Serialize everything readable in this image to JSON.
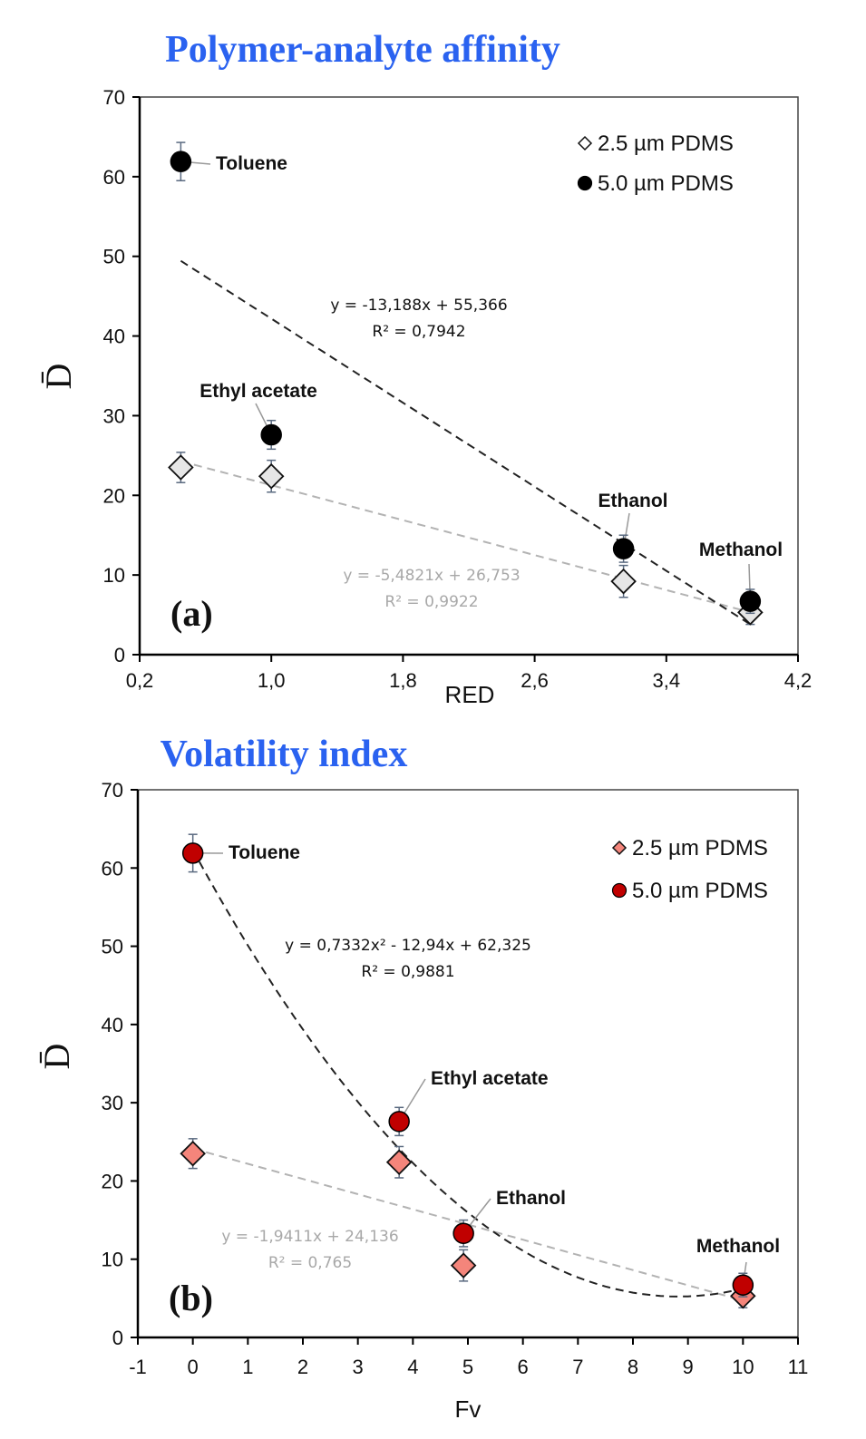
{
  "chart_data": [
    {
      "type": "scatter",
      "panel": "(a)",
      "title": "Polymer-analyte affinity",
      "xlabel": "RED",
      "ylabel": "D̄",
      "xlim": [
        0.2,
        4.2
      ],
      "ylim": [
        0,
        70
      ],
      "xticks": [
        0.2,
        1.0,
        1.8,
        2.6,
        3.4,
        4.2
      ],
      "xtick_labels": [
        "0,2",
        "1,0",
        "1,8",
        "2,6",
        "3,4",
        "4,2"
      ],
      "yticks": [
        0,
        10,
        20,
        30,
        40,
        50,
        60,
        70
      ],
      "ytick_labels": [
        "0",
        "10",
        "20",
        "30",
        "40",
        "50",
        "60",
        "70"
      ],
      "legend_position": "top-right",
      "grid": false,
      "categories": [
        "Toluene",
        "Ethyl acetate",
        "Ethanol",
        "Methanol"
      ],
      "x": [
        0.45,
        1.0,
        3.14,
        3.91
      ],
      "series": [
        {
          "name": "2.5 µm PDMS",
          "marker": "diamond",
          "color": "#e6e6e6",
          "values": [
            23.5,
            22.4,
            9.2,
            5.3
          ],
          "errors": [
            1.9,
            2.0,
            2.0,
            1.5
          ],
          "trendline": {
            "type": "linear",
            "equation": "y = -5,4821x + 26,753",
            "r2": "R² = 0,9922",
            "slope": -5.4821,
            "intercept": 26.753,
            "color": "#b3b3b3",
            "x_range": [
              0.45,
              3.91
            ]
          }
        },
        {
          "name": "5.0 µm PDMS",
          "marker": "circle",
          "color": "#000000",
          "values": [
            61.9,
            27.6,
            13.3,
            6.7
          ],
          "errors": [
            2.4,
            1.8,
            1.7,
            1.5
          ],
          "trendline": {
            "type": "linear",
            "equation": "y = -13,188x + 55,366",
            "r2": "R² = 0,7942",
            "slope": -13.188,
            "intercept": 55.366,
            "color": "#222222",
            "x_range": [
              0.45,
              3.91
            ]
          }
        }
      ],
      "annotations": [
        "Toluene",
        "Ethyl acetate",
        "Ethanol",
        "Methanol"
      ]
    },
    {
      "type": "scatter",
      "panel": "(b)",
      "title": "Volatility index",
      "xlabel": "Fv",
      "ylabel": "D̄",
      "xlim": [
        -1,
        11
      ],
      "ylim": [
        0,
        70
      ],
      "xticks": [
        -1,
        0,
        1,
        2,
        3,
        4,
        5,
        6,
        7,
        8,
        9,
        10,
        11
      ],
      "xtick_labels": [
        "-1",
        "0",
        "1",
        "2",
        "3",
        "4",
        "5",
        "6",
        "7",
        "8",
        "9",
        "10",
        "11"
      ],
      "yticks": [
        0,
        10,
        20,
        30,
        40,
        50,
        60,
        70
      ],
      "ytick_labels": [
        "0",
        "10",
        "20",
        "30",
        "40",
        "50",
        "60",
        "70"
      ],
      "legend_position": "top-right",
      "grid": false,
      "categories": [
        "Toluene",
        "Ethyl acetate",
        "Ethanol",
        "Methanol"
      ],
      "x": [
        0,
        3.75,
        4.92,
        10
      ],
      "series": [
        {
          "name": "2.5 µm PDMS",
          "marker": "diamond",
          "color": "#f4857b",
          "values": [
            23.5,
            22.4,
            9.2,
            5.3
          ],
          "errors": [
            1.9,
            2.0,
            2.0,
            1.5
          ],
          "trendline": {
            "type": "linear",
            "equation": "y = -1,9411x + 24,136",
            "r2": "R² = 0,765",
            "slope": -1.9411,
            "intercept": 24.136,
            "color": "#b3b3b3",
            "x_range": [
              0,
              10
            ]
          }
        },
        {
          "name": "5.0 µm PDMS",
          "marker": "circle",
          "color": "#c00000",
          "values": [
            61.9,
            27.6,
            13.3,
            6.7
          ],
          "errors": [
            2.4,
            1.8,
            1.7,
            1.5
          ],
          "trendline": {
            "type": "polynomial",
            "equation": "y = 0,7332x² - 12,94x + 62,325",
            "r2": "R² = 0,9881",
            "coefficients": [
              0.7332,
              -12.94,
              62.325
            ],
            "color": "#222222",
            "x_range": [
              0,
              10
            ]
          }
        }
      ],
      "annotations": [
        "Toluene",
        "Ethyl acetate",
        "Ethanol",
        "Methanol"
      ]
    }
  ]
}
